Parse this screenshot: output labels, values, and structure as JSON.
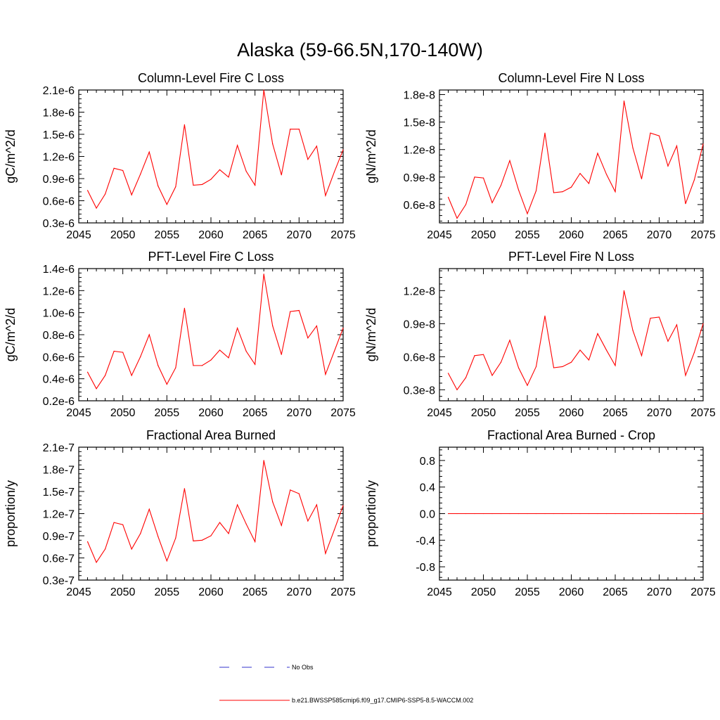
{
  "figure": {
    "title": "Alaska (59-66.5N,170-140W)",
    "legend": {
      "obs_label": "No Obs",
      "model_label": "b.e21.BWSSP585cmip6.f09_g17.CMIP6-SSP5-8.5-WACCM.002",
      "obs_color": "#3333cc",
      "model_color": "#ff0000"
    }
  },
  "chart_data": [
    {
      "type": "line",
      "title": "Column-Level Fire C Loss",
      "xlabel": "",
      "ylabel": "gC/m^2/d",
      "xlim": [
        2045,
        2075
      ],
      "ylim": [
        3e-07,
        2.1e-06
      ],
      "xticks": [
        2045,
        2050,
        2055,
        2060,
        2065,
        2070,
        2075
      ],
      "xtick_labels": [
        "2045",
        "2050",
        "2055",
        "2060",
        "2065",
        "2070",
        "2075"
      ],
      "yticks": [
        3e-07,
        6e-07,
        9e-07,
        1.2e-06,
        1.5e-06,
        1.8e-06,
        2.1e-06
      ],
      "ytick_labels": [
        "0.3e-6",
        "0.6e-6",
        "0.9e-6",
        "1.2e-6",
        "1.5e-6",
        "1.8e-6",
        "2.1e-6"
      ],
      "series": [
        {
          "name": "b.e21.BWSSP585cmip6.f09_g17.CMIP6-SSP5-8.5-WACCM.002",
          "color": "#ff0000",
          "x": [
            2046,
            2047,
            2048,
            2049,
            2050,
            2051,
            2052,
            2053,
            2054,
            2055,
            2056,
            2057,
            2058,
            2059,
            2060,
            2061,
            2062,
            2063,
            2064,
            2065,
            2066,
            2067,
            2068,
            2069,
            2070,
            2071,
            2072,
            2073,
            2074,
            2075
          ],
          "values": [
            7.4e-07,
            5e-07,
            6.9e-07,
            1.04e-06,
            1.01e-06,
            6.8e-07,
            9.6e-07,
            1.26e-06,
            8e-07,
            5.5e-07,
            7.9e-07,
            1.63e-06,
            8.1e-07,
            8.2e-07,
            8.9e-07,
            1.02e-06,
            9.2e-07,
            1.35e-06,
            1e-06,
            8.1e-07,
            2.1e-06,
            1.37e-06,
            9.5e-07,
            1.57e-06,
            1.57e-06,
            1.16e-06,
            1.34e-06,
            6.7e-07,
            9.9e-07,
            1.29e-06
          ]
        }
      ]
    },
    {
      "type": "line",
      "title": "Column-Level Fire N Loss",
      "xlabel": "",
      "ylabel": "gN/m^2/d",
      "xlim": [
        2045,
        2075
      ],
      "ylim": [
        4e-09,
        1.85e-08
      ],
      "xticks": [
        2045,
        2050,
        2055,
        2060,
        2065,
        2070,
        2075
      ],
      "xtick_labels": [
        "2045",
        "2050",
        "2055",
        "2060",
        "2065",
        "2070",
        "2075"
      ],
      "yticks": [
        6e-09,
        9e-09,
        1.2e-08,
        1.5e-08,
        1.8e-08
      ],
      "ytick_labels": [
        "0.6e-8",
        "0.9e-8",
        "1.2e-8",
        "1.5e-8",
        "1.8e-8"
      ],
      "series": [
        {
          "name": "b.e21.BWSSP585cmip6.f09_g17.CMIP6-SSP5-8.5-WACCM.002",
          "color": "#ff0000",
          "x": [
            2046,
            2047,
            2048,
            2049,
            2050,
            2051,
            2052,
            2053,
            2054,
            2055,
            2056,
            2057,
            2058,
            2059,
            2060,
            2061,
            2062,
            2063,
            2064,
            2065,
            2066,
            2067,
            2068,
            2069,
            2070,
            2071,
            2072,
            2073,
            2074,
            2075
          ],
          "values": [
            6.8e-09,
            4.5e-09,
            6e-09,
            9e-09,
            8.9e-09,
            6.2e-09,
            8.1e-09,
            1.08e-08,
            7.6e-09,
            5e-09,
            7.5e-09,
            1.38e-08,
            7.3e-09,
            7.4e-09,
            7.9e-09,
            9.4e-09,
            8.3e-09,
            1.16e-08,
            9.3e-09,
            7.4e-09,
            1.73e-08,
            1.22e-08,
            8.8e-09,
            1.38e-08,
            1.35e-08,
            1.02e-08,
            1.24e-08,
            6.1e-09,
            8.7e-09,
            1.26e-08
          ]
        }
      ]
    },
    {
      "type": "line",
      "title": "PFT-Level Fire C Loss",
      "xlabel": "",
      "ylabel": "gC/m^2/d",
      "xlim": [
        2045,
        2075
      ],
      "ylim": [
        2e-07,
        1.4e-06
      ],
      "xticks": [
        2045,
        2050,
        2055,
        2060,
        2065,
        2070,
        2075
      ],
      "xtick_labels": [
        "2045",
        "2050",
        "2055",
        "2060",
        "2065",
        "2070",
        "2075"
      ],
      "yticks": [
        2e-07,
        4e-07,
        6e-07,
        8e-07,
        1e-06,
        1.2e-06,
        1.4e-06
      ],
      "ytick_labels": [
        "0.2e-6",
        "0.4e-6",
        "0.6e-6",
        "0.8e-6",
        "1.0e-6",
        "1.2e-6",
        "1.4e-6"
      ],
      "series": [
        {
          "name": "b.e21.BWSSP585cmip6.f09_g17.CMIP6-SSP5-8.5-WACCM.002",
          "color": "#ff0000",
          "x": [
            2046,
            2047,
            2048,
            2049,
            2050,
            2051,
            2052,
            2053,
            2054,
            2055,
            2056,
            2057,
            2058,
            2059,
            2060,
            2061,
            2062,
            2063,
            2064,
            2065,
            2066,
            2067,
            2068,
            2069,
            2070,
            2071,
            2072,
            2073,
            2074,
            2075
          ],
          "values": [
            4.6e-07,
            3.1e-07,
            4.3e-07,
            6.5e-07,
            6.4e-07,
            4.3e-07,
            6e-07,
            8e-07,
            5.2e-07,
            3.5e-07,
            5e-07,
            1.04e-06,
            5.2e-07,
            5.2e-07,
            5.7e-07,
            6.6e-07,
            5.9e-07,
            8.6e-07,
            6.5e-07,
            5.3e-07,
            1.35e-06,
            8.8e-07,
            6.2e-07,
            1.01e-06,
            1.02e-06,
            7.7e-07,
            8.8e-07,
            4.4e-07,
            6.5e-07,
            8.6e-07
          ]
        }
      ]
    },
    {
      "type": "line",
      "title": "PFT-Level Fire N Loss",
      "xlabel": "",
      "ylabel": "gN/m^2/d",
      "xlim": [
        2045,
        2075
      ],
      "ylim": [
        2e-09,
        1.4e-08
      ],
      "xticks": [
        2045,
        2050,
        2055,
        2060,
        2065,
        2070,
        2075
      ],
      "xtick_labels": [
        "2045",
        "2050",
        "2055",
        "2060",
        "2065",
        "2070",
        "2075"
      ],
      "yticks": [
        3e-09,
        6e-09,
        9e-09,
        1.2e-08
      ],
      "ytick_labels": [
        "0.3e-8",
        "0.6e-8",
        "0.9e-8",
        "1.2e-8"
      ],
      "series": [
        {
          "name": "b.e21.BWSSP585cmip6.f09_g17.CMIP6-SSP5-8.5-WACCM.002",
          "color": "#ff0000",
          "x": [
            2046,
            2047,
            2048,
            2049,
            2050,
            2051,
            2052,
            2053,
            2054,
            2055,
            2056,
            2057,
            2058,
            2059,
            2060,
            2061,
            2062,
            2063,
            2064,
            2065,
            2066,
            2067,
            2068,
            2069,
            2070,
            2071,
            2072,
            2073,
            2074,
            2075
          ],
          "values": [
            4.5e-09,
            3e-09,
            4.1e-09,
            6.1e-09,
            6.2e-09,
            4.3e-09,
            5.5e-09,
            7.5e-09,
            5e-09,
            3.4e-09,
            5.1e-09,
            9.7e-09,
            5e-09,
            5.1e-09,
            5.5e-09,
            6.6e-09,
            5.7e-09,
            8.1e-09,
            6.6e-09,
            5.2e-09,
            1.2e-08,
            8.4e-09,
            6.1e-09,
            9.5e-09,
            9.6e-09,
            7.4e-09,
            8.9e-09,
            4.3e-09,
            6.4e-09,
            9e-09
          ]
        }
      ]
    },
    {
      "type": "line",
      "title": "Fractional Area Burned",
      "xlabel": "",
      "ylabel": "proportion/y",
      "xlim": [
        2045,
        2075
      ],
      "ylim": [
        3e-08,
        2.1e-07
      ],
      "xticks": [
        2045,
        2050,
        2055,
        2060,
        2065,
        2070,
        2075
      ],
      "xtick_labels": [
        "2045",
        "2050",
        "2055",
        "2060",
        "2065",
        "2070",
        "2075"
      ],
      "yticks": [
        3e-08,
        6e-08,
        9e-08,
        1.2e-07,
        1.5e-07,
        1.8e-07,
        2.1e-07
      ],
      "ytick_labels": [
        "0.3e-7",
        "0.6e-7",
        "0.9e-7",
        "1.2e-7",
        "1.5e-7",
        "1.8e-7",
        "2.1e-7"
      ],
      "series": [
        {
          "name": "b.e21.BWSSP585cmip6.f09_g17.CMIP6-SSP5-8.5-WACCM.002",
          "color": "#ff0000",
          "x": [
            2046,
            2047,
            2048,
            2049,
            2050,
            2051,
            2052,
            2053,
            2054,
            2055,
            2056,
            2057,
            2058,
            2059,
            2060,
            2061,
            2062,
            2063,
            2064,
            2065,
            2066,
            2067,
            2068,
            2069,
            2070,
            2071,
            2072,
            2073,
            2074,
            2075
          ],
          "values": [
            8.2e-08,
            5.4e-08,
            7.2e-08,
            1.08e-07,
            1.05e-07,
            7.2e-08,
            9.3e-08,
            1.26e-07,
            8.9e-08,
            5.6e-08,
            8.7e-08,
            1.54e-07,
            8.3e-08,
            8.4e-08,
            9e-08,
            1.08e-07,
            9.3e-08,
            1.32e-07,
            1.06e-07,
            8.2e-08,
            1.92e-07,
            1.36e-07,
            1.04e-07,
            1.52e-07,
            1.47e-07,
            1.1e-07,
            1.32e-07,
            6.6e-08,
            9.8e-08,
            1.31e-07
          ]
        }
      ]
    },
    {
      "type": "line",
      "title": "Fractional Area Burned - Crop",
      "xlabel": "",
      "ylabel": "proportion/y",
      "xlim": [
        2045,
        2075
      ],
      "ylim": [
        -1.0,
        1.0
      ],
      "xticks": [
        2045,
        2050,
        2055,
        2060,
        2065,
        2070,
        2075
      ],
      "xtick_labels": [
        "2045",
        "2050",
        "2055",
        "2060",
        "2065",
        "2070",
        "2075"
      ],
      "yticks": [
        -0.8,
        -0.4,
        0.0,
        0.4,
        0.8
      ],
      "ytick_labels": [
        "-0.8",
        "-0.4",
        "0.0",
        "0.4",
        "0.8"
      ],
      "series": [
        {
          "name": "b.e21.BWSSP585cmip6.f09_g17.CMIP6-SSP5-8.5-WACCM.002",
          "color": "#ff0000",
          "x": [
            2046,
            2047,
            2048,
            2049,
            2050,
            2051,
            2052,
            2053,
            2054,
            2055,
            2056,
            2057,
            2058,
            2059,
            2060,
            2061,
            2062,
            2063,
            2064,
            2065,
            2066,
            2067,
            2068,
            2069,
            2070,
            2071,
            2072,
            2073,
            2074,
            2075
          ],
          "values": [
            0,
            0,
            0,
            0,
            0,
            0,
            0,
            0,
            0,
            0,
            0,
            0,
            0,
            0,
            0,
            0,
            0,
            0,
            0,
            0,
            0,
            0,
            0,
            0,
            0,
            0,
            0,
            0,
            0,
            0
          ]
        }
      ]
    }
  ]
}
